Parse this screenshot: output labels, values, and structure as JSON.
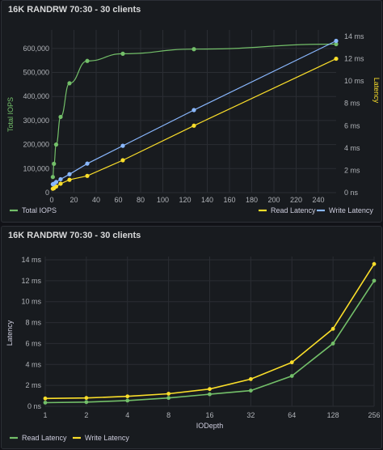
{
  "charts": [
    {
      "title": "16K RANDRW 70:30 - 30 clients",
      "y_left_label": "Total IOPS",
      "y_right_label": "Latency",
      "x_ticks": [
        "0",
        "20",
        "40",
        "60",
        "80",
        "100",
        "120",
        "140",
        "160",
        "180",
        "200",
        "220",
        "240"
      ],
      "y_left_ticks": [
        "0",
        "100,000",
        "200,000",
        "300,000",
        "400,000",
        "500,000",
        "600,000"
      ],
      "y_right_ticks": [
        "0 ns",
        "2 ms",
        "4 ms",
        "6 ms",
        "8 ms",
        "10 ms",
        "12 ms",
        "14 ms"
      ]
    },
    {
      "title": "16K RANDRW 70:30 - 30 clients",
      "x_label": "IODepth",
      "y_label": "Latency",
      "x_ticks": [
        "1",
        "2",
        "4",
        "8",
        "16",
        "32",
        "64",
        "128",
        "256"
      ],
      "y_ticks": [
        "0 ns",
        "2 ms",
        "4 ms",
        "6 ms",
        "8 ms",
        "10 ms",
        "12 ms",
        "14 ms"
      ]
    }
  ],
  "chart_data": [
    {
      "type": "line",
      "x_range": [
        0,
        256
      ],
      "y_left_range": [
        0,
        650000
      ],
      "y_right_range": [
        0,
        14
      ],
      "y_right_unit": "ms",
      "grid": true,
      "legend_position": "bottom",
      "series": [
        {
          "name": "Total IOPS",
          "axis": "left",
          "color": "#73bf69",
          "x": [
            1,
            2,
            4,
            8,
            16,
            32,
            64,
            128,
            256
          ],
          "y": [
            65000,
            120000,
            200000,
            315000,
            455000,
            548000,
            578000,
            597000,
            618000
          ]
        },
        {
          "name": "Read Latency",
          "axis": "right",
          "color": "#fade2a",
          "x": [
            1,
            2,
            4,
            8,
            16,
            32,
            64,
            128,
            256
          ],
          "y": [
            0.35,
            0.4,
            0.55,
            0.8,
            1.15,
            1.5,
            2.9,
            6.0,
            12.0
          ]
        },
        {
          "name": "Write Latency",
          "axis": "right",
          "color": "#8ab8ff",
          "x": [
            1,
            2,
            4,
            8,
            16,
            32,
            64,
            128,
            256
          ],
          "y": [
            0.75,
            0.8,
            0.95,
            1.2,
            1.65,
            2.6,
            4.2,
            7.4,
            13.6
          ]
        }
      ]
    },
    {
      "type": "line",
      "x_scale": "log2",
      "x_categories": [
        1,
        2,
        4,
        8,
        16,
        32,
        64,
        128,
        256
      ],
      "y_range": [
        0,
        14
      ],
      "y_unit": "ms",
      "grid": true,
      "legend_position": "bottom",
      "series": [
        {
          "name": "Read Latency",
          "color": "#73bf69",
          "x": [
            1,
            2,
            4,
            8,
            16,
            32,
            64,
            128,
            256
          ],
          "y": [
            0.35,
            0.4,
            0.55,
            0.8,
            1.15,
            1.5,
            2.9,
            6.0,
            12.0
          ]
        },
        {
          "name": "Write Latency",
          "color": "#fade2a",
          "x": [
            1,
            2,
            4,
            8,
            16,
            32,
            64,
            128,
            256
          ],
          "y": [
            0.75,
            0.8,
            0.95,
            1.2,
            1.65,
            2.6,
            4.2,
            7.4,
            13.6
          ]
        }
      ]
    }
  ]
}
